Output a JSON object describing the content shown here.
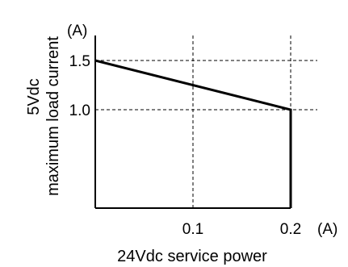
{
  "chart_data": {
    "type": "line",
    "xlabel": "24Vdc service power",
    "ylabel": [
      "5Vdc",
      "maximum load current"
    ],
    "x_unit": "(A)",
    "y_unit": "(A)",
    "xlim": [
      0,
      0.2
    ],
    "ylim": [
      0,
      1.5
    ],
    "x_ticks": [
      {
        "value": 0.1,
        "label": "0.1"
      },
      {
        "value": 0.2,
        "label": "0.2"
      }
    ],
    "y_ticks": [
      {
        "value": 1.0,
        "label": "1.0"
      },
      {
        "value": 1.5,
        "label": "1.5"
      }
    ],
    "grid": true,
    "series": [
      {
        "x": [
          0,
          0.2,
          0.2
        ],
        "y": [
          1.5,
          1.0,
          0
        ],
        "color": "#000000"
      }
    ]
  }
}
